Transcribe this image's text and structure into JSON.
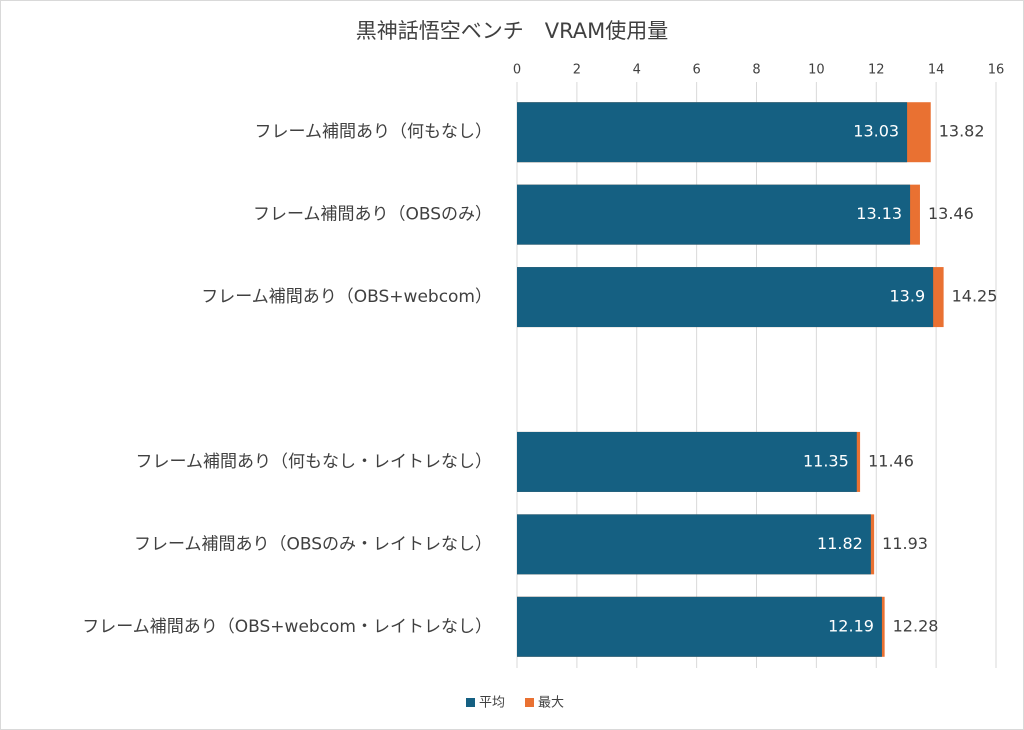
{
  "chart_data": {
    "type": "bar",
    "orientation": "horizontal",
    "title": "黒神話悟空ベンチ　VRAM使用量",
    "categories": [
      "フレーム補間あり（何もなし）",
      "フレーム補間あり（OBSのみ）",
      "フレーム補間あり（OBS+webcom）",
      null,
      "フレーム補間あり（何もなし・レイトレなし）",
      "フレーム補間あり（OBSのみ・レイトレなし）",
      "フレーム補間あり（OBS+webcom・レイトレなし）"
    ],
    "series": [
      {
        "name": "最大",
        "color": "#e97132",
        "values": [
          13.82,
          13.46,
          14.25,
          null,
          11.46,
          11.93,
          12.28
        ]
      },
      {
        "name": "平均",
        "color": "#156082",
        "values": [
          13.03,
          13.13,
          13.9,
          null,
          11.35,
          11.82,
          12.19
        ]
      }
    ],
    "xlim": [
      0,
      16
    ],
    "xticks": [
      0,
      2,
      4,
      6,
      8,
      10,
      12,
      14,
      16
    ],
    "grid": true,
    "legend": "bottom"
  }
}
